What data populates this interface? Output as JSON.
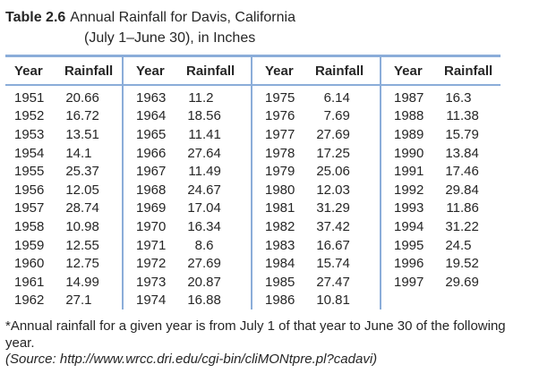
{
  "caption": {
    "label": "Table 2.6",
    "line1": "Annual Rainfall for Davis, California",
    "line2": "(July 1–June 30), in Inches"
  },
  "table": {
    "col_headers": [
      "Year",
      "Rainfall"
    ],
    "groups": [
      {
        "rows": [
          [
            "1951",
            "20.66"
          ],
          [
            "1952",
            "16.72"
          ],
          [
            "1953",
            "13.51"
          ],
          [
            "1954",
            "14.1"
          ],
          [
            "1955",
            "25.37"
          ],
          [
            "1956",
            "12.05"
          ],
          [
            "1957",
            "28.74"
          ],
          [
            "1958",
            "10.98"
          ],
          [
            "1959",
            "12.55"
          ],
          [
            "1960",
            "12.75"
          ],
          [
            "1961",
            "14.99"
          ],
          [
            "1962",
            "27.1"
          ]
        ]
      },
      {
        "rows": [
          [
            "1963",
            "11.2"
          ],
          [
            "1964",
            "18.56"
          ],
          [
            "1965",
            "11.41"
          ],
          [
            "1966",
            "27.64"
          ],
          [
            "1967",
            "11.49"
          ],
          [
            "1968",
            "24.67"
          ],
          [
            "1969",
            "17.04"
          ],
          [
            "1970",
            "16.34"
          ],
          [
            "1971",
            "8.6"
          ],
          [
            "1972",
            "27.69"
          ],
          [
            "1973",
            "20.87"
          ],
          [
            "1974",
            "16.88"
          ]
        ]
      },
      {
        "rows": [
          [
            "1975",
            "6.14"
          ],
          [
            "1976",
            "7.69"
          ],
          [
            "1977",
            "27.69"
          ],
          [
            "1978",
            "17.25"
          ],
          [
            "1979",
            "25.06"
          ],
          [
            "1980",
            "12.03"
          ],
          [
            "1981",
            "31.29"
          ],
          [
            "1982",
            "37.42"
          ],
          [
            "1983",
            "16.67"
          ],
          [
            "1984",
            "15.74"
          ],
          [
            "1985",
            "27.47"
          ],
          [
            "1986",
            "10.81"
          ]
        ]
      },
      {
        "rows": [
          [
            "1987",
            "16.3"
          ],
          [
            "1988",
            "11.38"
          ],
          [
            "1989",
            "15.79"
          ],
          [
            "1990",
            "13.84"
          ],
          [
            "1991",
            "17.46"
          ],
          [
            "1992",
            "29.84"
          ],
          [
            "1993",
            "11.86"
          ],
          [
            "1994",
            "31.22"
          ],
          [
            "1995",
            "24.5"
          ],
          [
            "1996",
            "19.52"
          ],
          [
            "1997",
            "29.69"
          ]
        ]
      }
    ]
  },
  "notes": {
    "footnote": "*Annual rainfall for a given year is from July 1 of that year to June 30 of the following year.",
    "source": "(Source: http://www.wrcc.dri.edu/cgi-bin/cliMONtpre.pl?cadavi)"
  },
  "colors": {
    "rule": "#8badd9",
    "text": "#262626"
  }
}
